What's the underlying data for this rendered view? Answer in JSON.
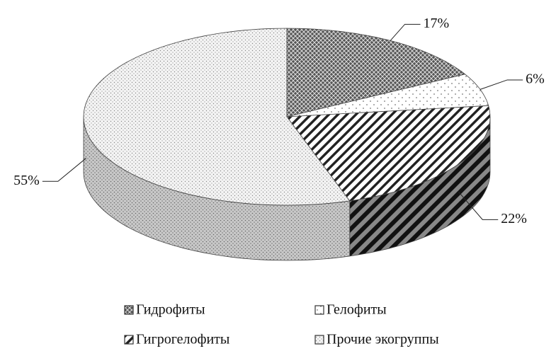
{
  "chart_data": {
    "type": "pie3d",
    "categories": [
      "Гидрофиты",
      "Гелофиты",
      "Гигрогелофиты",
      "Прочие экогруппы"
    ],
    "values": [
      17,
      6,
      22,
      55
    ],
    "value_labels": [
      "17%",
      "6%",
      "22%",
      "55%"
    ],
    "legend": "bottom"
  }
}
